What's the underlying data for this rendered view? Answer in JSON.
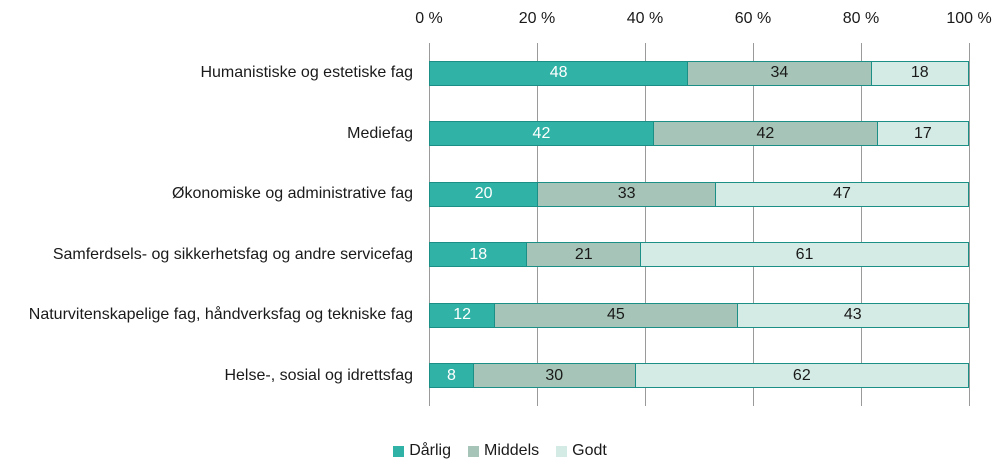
{
  "chart_data": {
    "type": "bar",
    "orientation": "horizontal",
    "stacked": true,
    "title": "",
    "categories": [
      "Humanistiske og estetiske fag",
      "Mediefag",
      "Økonomiske og administrative fag",
      "Samferdsels- og sikkerhetsfag og andre servicefag",
      "Naturvitenskapelige fag, håndverksfag og tekniske fag",
      "Helse-, sosial og idrettsfag"
    ],
    "series": [
      {
        "name": "Dårlig",
        "color": "#31B2A6",
        "value_label_color": "#FFFFFF",
        "values": [
          48,
          42,
          20,
          18,
          12,
          8
        ]
      },
      {
        "name": "Middels",
        "color": "#A6C4B7",
        "value_label_color": "#1A1A1A",
        "values": [
          34,
          42,
          33,
          21,
          45,
          30
        ]
      },
      {
        "name": "Godt",
        "color": "#D3EBE4",
        "value_label_color": "#1A1A1A",
        "values": [
          18,
          17,
          47,
          61,
          43,
          62
        ]
      }
    ],
    "x_ticks": [
      "0 %",
      "20 %",
      "40 %",
      "60 %",
      "80 %",
      "100 %"
    ],
    "xlim": [
      0,
      100
    ],
    "x_axis_position": "top",
    "legend_position": "bottom",
    "grid": true,
    "bar_border_color": "#1B8E85",
    "gridline_color": "#9A9A9A",
    "text_color": "#1A1A1A",
    "background": "#FFFFFF"
  }
}
